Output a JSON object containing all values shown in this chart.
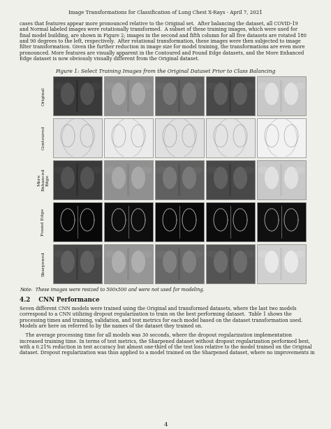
{
  "page_title": "Image Transformations for Classification of Lung Chest X-Rays - April 7, 2021",
  "bg_color": "#f0f0eb",
  "figure_title": "Figure 1: Select Training Images from the Original Dataset Prior to Class Balancing",
  "row_labels": [
    "Original",
    "Contoured",
    "More\nEnhanced\nEdge",
    "Found Edge",
    "Sharpened"
  ],
  "note_text": "Note:  These images were resized to 500x500 and were not used for modeling.",
  "section_header": "4.2    CNN Performance",
  "body_text_1": [
    "cases that features appear more pronounced relative to the Original set.  After balancing the dataset, all COVID-19",
    "and Normal labeled images were rotationally transformed.  A subset of these training images, which were used for",
    "final model building, are shown in Figure 2; images in the second and fifth column for all five datasets are rotated 180",
    "and 90 degrees to the left, respectively.  After rotational transformation, these images were then subjected to image",
    "filter transformation. Given the further reduction in image size for model training, the transformations are even more",
    "pronounced. More features are visually apparent in the Contoured and Found Edge datasets, and the More Enhanced",
    "Edge dataset is now obviously visually different from the Original dataset."
  ],
  "body_text_2": [
    "Seven different CNN models were trained using the Original and transformed datasets, where the last two models",
    "correspond to a CNN utilizing dropout regularization to train on the best performing dataset.  Table 1 shows the",
    "processing times and training, validation, and test metrics for each model based on the dataset transformation used.",
    "Models are here on referred to by the names of the dataset they trained on."
  ],
  "body_text_3": [
    "    The average processing time for all models was 30 seconds, where the dropout regularization implementation",
    "increased training time. In terms of test metrics, the Sharpened dataset without dropout regularization performed best,",
    "with a 0.21% reduction in test accuracy but almost one-third of the test loss relative to the model trained on the Original",
    "dataset. Dropout regularization was thus applied to a model trained on the Sharpened dataset, where no improvements in"
  ],
  "page_number": "4",
  "row_img_colors": [
    [
      "#3a3a3a",
      "#909090",
      "#606060",
      "#484848",
      "#c8c8c8"
    ],
    [
      "#e0e0e0",
      "#ebebeb",
      "#e0e0e0",
      "#e4e4e4",
      "#f2f2f2"
    ],
    [
      "#3a3a3a",
      "#909090",
      "#606060",
      "#484848",
      "#c8c8c8"
    ],
    [
      "#080808",
      "#0e0e0e",
      "#0a0a0a",
      "#0c0c0c",
      "#101010"
    ],
    [
      "#484848",
      "#969696",
      "#686868",
      "#545454",
      "#d0d0d0"
    ]
  ]
}
